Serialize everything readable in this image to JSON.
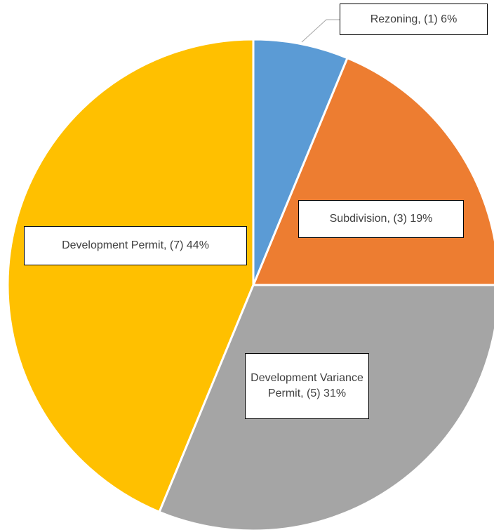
{
  "chart_data": {
    "type": "pie",
    "values": [
      1,
      3,
      5,
      7
    ],
    "value_labels": [
      "Rezoning, (1) 6%",
      "Subdivision, (3) 19%",
      "Development Variance Permit, (5) 31%",
      "Development Permit, (7) 44%"
    ],
    "colors": [
      "#5b9bd5",
      "#ed7d31",
      "#a5a5a5",
      "#ffc000"
    ]
  }
}
